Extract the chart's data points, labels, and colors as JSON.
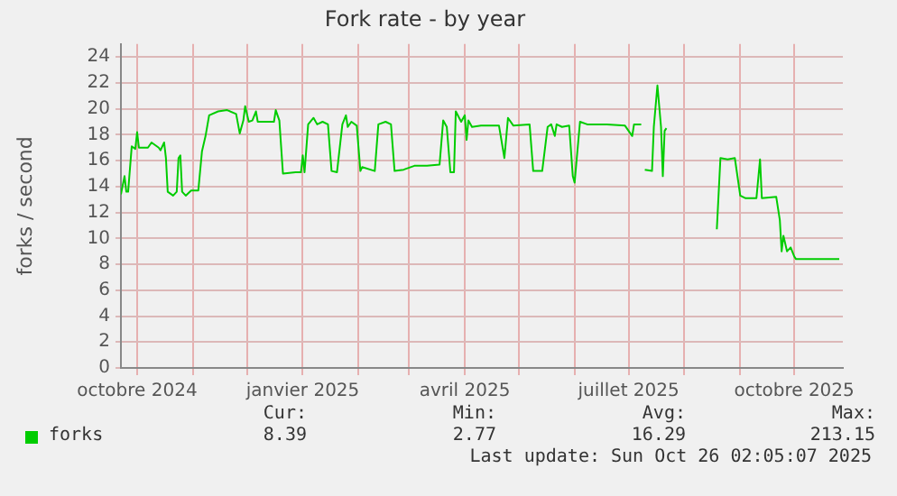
{
  "chart_data": {
    "type": "line",
    "title": "Fork rate - by year",
    "ylabel": "forks / second",
    "xlim": [
      "2024-09-22",
      "2025-10-28"
    ],
    "xticks": [
      {
        "value": "2024-10-01",
        "label": "octobre 2024"
      },
      {
        "value": "2024-11-01",
        "label": null
      },
      {
        "value": "2024-12-01",
        "label": null
      },
      {
        "value": "2025-01-01",
        "label": "janvier 2025"
      },
      {
        "value": "2025-02-01",
        "label": null
      },
      {
        "value": "2025-03-01",
        "label": null
      },
      {
        "value": "2025-04-01",
        "label": "avril 2025"
      },
      {
        "value": "2025-05-01",
        "label": null
      },
      {
        "value": "2025-06-01",
        "label": null
      },
      {
        "value": "2025-07-01",
        "label": "juillet 2025"
      },
      {
        "value": "2025-08-01",
        "label": null
      },
      {
        "value": "2025-09-01",
        "label": null
      },
      {
        "value": "2025-10-01",
        "label": "octobre 2025"
      }
    ],
    "ylim": [
      0,
      25
    ],
    "yticks": [
      0,
      2,
      4,
      6,
      8,
      10,
      12,
      14,
      16,
      18,
      20,
      22,
      24
    ],
    "grid": true,
    "legend": "bottom",
    "x": [
      "2024-09-22",
      "2024-09-24",
      "2024-09-25",
      "2024-09-26",
      "2024-09-28",
      "2024-09-30",
      "2024-10-01",
      "2024-10-02",
      "2024-10-07",
      "2024-10-09",
      "2024-10-13",
      "2024-10-14",
      "2024-10-16",
      "2024-10-17",
      "2024-10-18",
      "2024-10-21",
      "2024-10-23",
      "2024-10-24",
      "2024-10-25",
      "2024-10-26",
      "2024-10-28",
      "2024-10-31",
      "2024-11-04",
      "2024-11-06",
      "2024-11-08",
      "2024-11-10",
      "2024-11-15",
      "2024-11-20",
      "2024-11-25",
      "2024-11-27",
      "2024-11-29",
      "2024-11-30",
      "2024-12-02",
      "2024-12-04",
      "2024-12-06",
      "2024-12-07",
      "2024-12-16",
      "2024-12-17",
      "2024-12-19",
      "2024-12-21",
      "2024-12-28",
      "2024-12-31",
      "2025-01-01",
      "2025-01-02",
      "2025-01-04",
      "2025-01-07",
      "2025-01-09",
      "2025-01-12",
      "2025-01-15",
      "2025-01-17",
      "2025-01-20",
      "2025-01-23",
      "2025-01-25",
      "2025-01-26",
      "2025-01-28",
      "2025-01-31",
      "2025-02-02",
      "2025-02-03",
      "2025-02-10",
      "2025-02-12",
      "2025-02-16",
      "2025-02-19",
      "2025-02-21",
      "2025-02-26",
      "2025-03-04",
      "2025-03-11",
      "2025-03-18",
      "2025-03-20",
      "2025-03-22",
      "2025-03-24",
      "2025-03-26",
      "2025-03-27",
      "2025-03-30",
      "2025-04-01",
      "2025-04-02",
      "2025-04-03",
      "2025-04-05",
      "2025-04-10",
      "2025-04-20",
      "2025-04-23",
      "2025-04-25",
      "2025-04-28",
      "2025-05-07",
      "2025-05-09",
      "2025-05-14",
      "2025-05-17",
      "2025-05-19",
      "2025-05-21",
      "2025-05-22",
      "2025-05-25",
      "2025-05-29",
      "2025-05-31",
      "2025-06-01",
      "2025-06-04",
      "2025-06-08",
      "2025-06-19",
      "2025-06-29",
      "2025-07-03",
      "2025-07-04",
      "2025-07-08",
      "2025-07-09",
      "2025-07-10",
      "2025-07-14",
      "2025-07-15",
      "2025-07-17",
      "2025-07-19",
      "2025-07-20",
      "2025-07-21",
      "2025-07-22",
      "2025-08-01",
      "2025-08-19",
      "2025-08-21",
      "2025-08-25",
      "2025-08-29",
      "2025-09-01",
      "2025-09-04",
      "2025-09-10",
      "2025-09-12",
      "2025-09-13",
      "2025-09-21",
      "2025-09-23",
      "2025-09-24",
      "2025-09-25",
      "2025-09-27",
      "2025-09-29",
      "2025-10-01",
      "2025-10-02",
      "2025-10-26"
    ],
    "series": [
      {
        "name": "forks",
        "color": "#00cc00",
        "values": [
          13.4,
          14.8,
          13.6,
          13.6,
          17.1,
          16.9,
          18.2,
          17.0,
          17.0,
          17.4,
          17.0,
          16.8,
          17.4,
          16.2,
          13.6,
          13.3,
          13.6,
          16.2,
          16.4,
          13.6,
          13.3,
          13.7,
          13.7,
          16.7,
          17.9,
          19.5,
          19.8,
          19.9,
          19.6,
          18.1,
          19.1,
          20.2,
          19.0,
          19.1,
          19.8,
          19.0,
          19.0,
          19.9,
          19.1,
          15.0,
          15.1,
          15.1,
          16.4,
          15.1,
          18.8,
          19.3,
          18.8,
          19.0,
          18.8,
          15.2,
          15.1,
          18.8,
          19.5,
          18.6,
          19.0,
          18.7,
          15.2,
          15.5,
          15.2,
          18.8,
          19.0,
          18.8,
          15.2,
          15.3,
          15.6,
          15.6,
          15.7,
          19.1,
          18.6,
          15.1,
          15.1,
          19.8,
          19.0,
          19.5,
          17.6,
          19.1,
          18.6,
          18.7,
          18.7,
          16.2,
          19.3,
          18.7,
          18.8,
          15.2,
          15.2,
          18.6,
          18.8,
          17.9,
          18.8,
          18.6,
          18.7,
          14.8,
          14.3,
          19.0,
          18.8,
          18.8,
          18.7,
          17.9,
          18.8,
          18.8,
          null,
          15.3,
          15.2,
          18.6,
          21.8,
          18.6,
          14.8,
          18.3,
          18.5,
          null,
          10.7,
          16.2,
          16.1,
          16.2,
          13.3,
          13.1,
          13.1,
          16.1,
          13.1,
          13.2,
          11.4,
          9.0,
          10.2,
          9.0,
          9.3,
          8.6,
          8.4,
          8.4
        ]
      }
    ],
    "annotations": [
      "Cur:",
      "Min:",
      "Avg:",
      "Max:",
      "8.39",
      "2.77",
      "16.29",
      "213.15",
      "Last update: Sun Oct 26 02:05:07 2025"
    ]
  }
}
